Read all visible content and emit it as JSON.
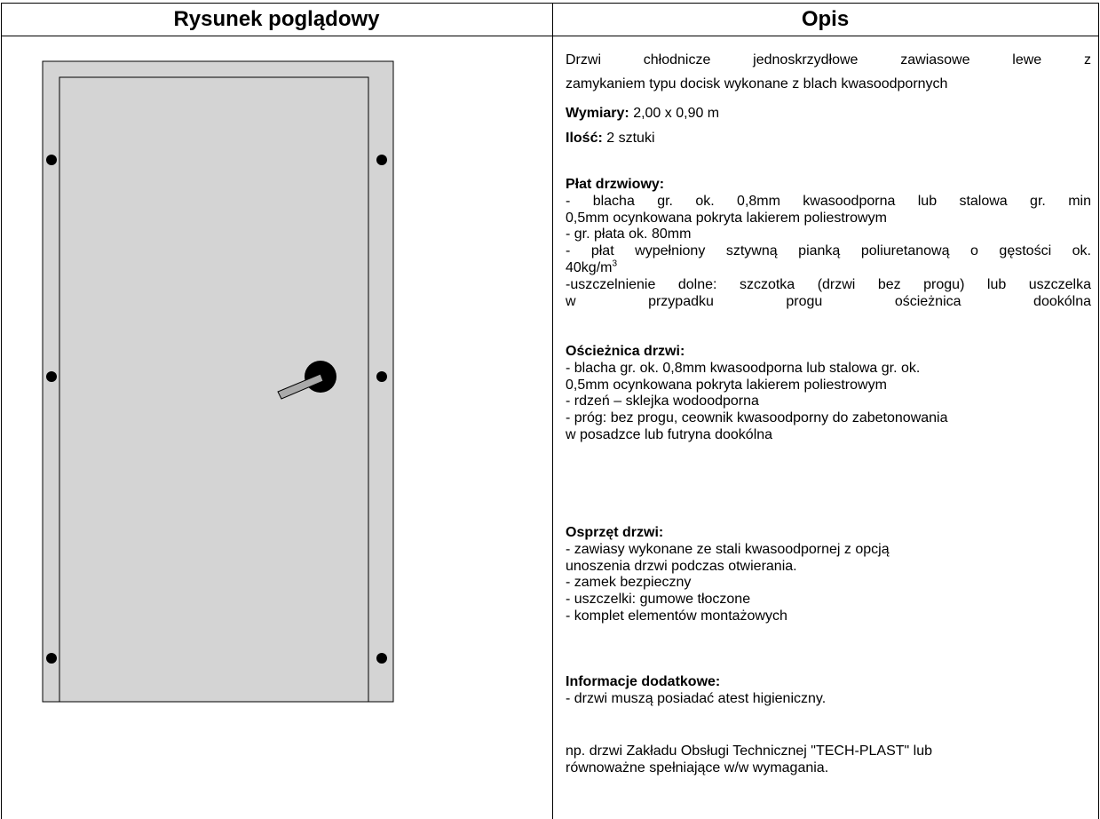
{
  "table": {
    "headers": [
      "Rysunek poglądowy",
      "Opis"
    ],
    "description": {
      "intro": [
        "Drzwi chłodnicze jednoskrzydłowe zawiasowe lewe z",
        "zamykaniem typu docisk wykonane z blach kwasoodpornych"
      ],
      "dimensions": {
        "label": "Wymiary:",
        "value": "2,00 x 0,90 m"
      },
      "quantity": {
        "label": "Ilość:",
        "value": "2 sztuki"
      },
      "sections": [
        {
          "heading": "Płat drzwiowy:",
          "lines": [
            "- blacha gr. ok. 0,8mm kwasoodporna lub stalowa gr. min",
            "0,5mm ocynkowana pokryta lakierem poliestrowym",
            "- gr. płata ok. 80mm",
            "- płat wypełniony sztywną pianką poliuretanową o gęstości ok.",
            {
              "text": "40kg/m",
              "sup": "3"
            },
            "-uszczelnienie dolne: szczotka (drzwi bez progu) lub uszczelka",
            "w przypadku progu ościeżnica dookólna"
          ]
        },
        {
          "heading": "Ościeżnica drzwi:",
          "lines": [
            "- blacha gr. ok. 0,8mm kwasoodporna lub stalowa gr. ok.",
            "0,5mm ocynkowana pokryta lakierem poliestrowym",
            "- rdzeń – sklejka wodoodporna",
            "- próg: bez progu, ceownik kwasoodporny do zabetonowania",
            "w posadzce lub futryna dookólna"
          ]
        },
        {
          "heading": "Osprzęt drzwi:",
          "lines": [
            "- zawiasy wykonane ze stali kwasoodpornej z opcją",
            "unoszenia drzwi podczas otwierania.",
            "- zamek bezpieczny",
            "- uszczelki: gumowe tłoczone",
            "- komplet elementów montażowych"
          ]
        },
        {
          "heading": "Informacje dodatkowe:",
          "lines": [
            "- drzwi muszą posiadać atest higieniczny."
          ]
        }
      ],
      "note": [
        "np. drzwi Zakładu Obsługi Technicznej \"TECH-PLAST\" lub",
        "równoważne spełniające w/w wymagania."
      ]
    }
  }
}
